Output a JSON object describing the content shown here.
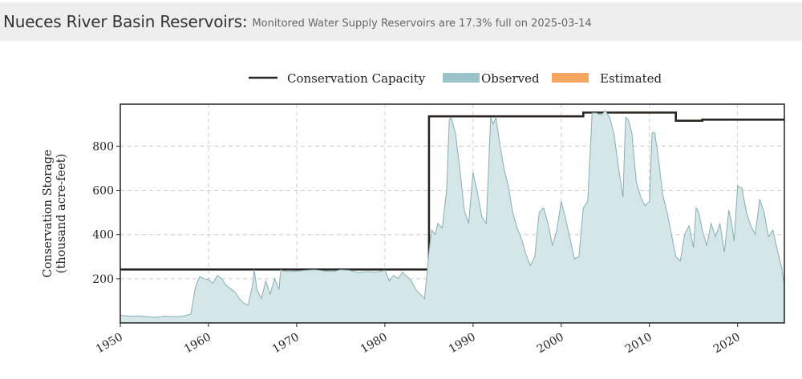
{
  "header": {
    "title": "Nueces River Basin Reservoirs:",
    "subtitle": "Monitored Water Supply Reservoirs are 17.3% full on 2025-03-14"
  },
  "chart_data": {
    "type": "area",
    "title": "",
    "xlabel": "",
    "ylabel_lines": [
      "Conservation Storage",
      "(thousand acre-feet)"
    ],
    "xlim": [
      1950,
      2025.3
    ],
    "ylim": [
      0,
      990
    ],
    "x_ticks": [
      1950,
      1960,
      1970,
      1980,
      1990,
      2000,
      2010,
      2020
    ],
    "y_ticks": [
      200,
      400,
      600,
      800
    ],
    "grid": true,
    "legend_position": "top",
    "legend": [
      {
        "label": "Conservation Capacity",
        "kind": "line",
        "color": "#2b2522"
      },
      {
        "label": "Observed",
        "kind": "patch",
        "color": "#9bc2c8"
      },
      {
        "label": "Estimated",
        "kind": "patch",
        "color": "#f4a560"
      }
    ],
    "series": [
      {
        "name": "Conservation Capacity",
        "kind": "step",
        "color": "#2b2522",
        "x": [
          1950,
          1985,
          1985,
          2002.5,
          2002.5,
          2013,
          2013,
          2016,
          2016,
          2025.3
        ],
        "y": [
          242,
          242,
          935,
          935,
          952,
          952,
          915,
          915,
          920,
          920
        ]
      },
      {
        "name": "Observed",
        "kind": "area",
        "fill": "#d5e6e8",
        "stroke": "#86aeb5",
        "x": [
          1950,
          1951,
          1952,
          1953,
          1954,
          1955,
          1956,
          1957,
          1958,
          1958.5,
          1959,
          1959.5,
          1960,
          1960.5,
          1961,
          1961.5,
          1962,
          1962.5,
          1963,
          1963.5,
          1964,
          1964.5,
          1965,
          1965.2,
          1965.5,
          1966,
          1966.5,
          1967,
          1967.5,
          1968,
          1968.2,
          1968.5,
          1969,
          1970,
          1971,
          1972,
          1973,
          1974,
          1975,
          1976,
          1977,
          1978,
          1979,
          1980,
          1980.5,
          1981,
          1981.5,
          1982,
          1983,
          1983.5,
          1984,
          1984.5,
          1985,
          1985.3,
          1985.7,
          1986,
          1986.5,
          1987,
          1987.3,
          1987.5,
          1988,
          1988.5,
          1989,
          1989.5,
          1990,
          1990.5,
          1991,
          1991.5,
          1992,
          1992.3,
          1992.6,
          1993,
          1993.5,
          1994,
          1994.5,
          1995,
          1995.5,
          1996,
          1996.5,
          1997,
          1997.5,
          1998,
          1998.5,
          1999,
          1999.5,
          2000,
          2000.5,
          2001,
          2001.5,
          2002,
          2002.5,
          2003,
          2003.5,
          2004,
          2004.5,
          2005,
          2005.5,
          2006,
          2006.5,
          2007,
          2007.3,
          2007.6,
          2008,
          2008.5,
          2009,
          2009.5,
          2010,
          2010.3,
          2010.6,
          2011,
          2011.5,
          2012,
          2012.5,
          2013,
          2013.5,
          2014,
          2014.5,
          2015,
          2015.3,
          2015.6,
          2016,
          2016.5,
          2017,
          2017.5,
          2018,
          2018.5,
          2019,
          2019.3,
          2019.6,
          2020,
          2020.5,
          2021,
          2021.5,
          2022,
          2022.5,
          2023,
          2023.5,
          2024,
          2024.5,
          2025,
          2025.3
        ],
        "y": [
          35,
          30,
          32,
          28,
          25,
          30,
          28,
          30,
          40,
          160,
          210,
          200,
          195,
          180,
          215,
          200,
          170,
          155,
          140,
          110,
          90,
          80,
          170,
          240,
          150,
          110,
          190,
          130,
          200,
          150,
          240,
          235,
          232,
          235,
          238,
          240,
          236,
          232,
          240,
          238,
          228,
          232,
          230,
          238,
          190,
          215,
          200,
          230,
          190,
          150,
          130,
          110,
          320,
          420,
          400,
          450,
          430,
          600,
          920,
          930,
          860,
          700,
          510,
          450,
          680,
          590,
          480,
          450,
          930,
          900,
          930,
          820,
          700,
          620,
          500,
          430,
          380,
          310,
          260,
          300,
          500,
          520,
          450,
          350,
          420,
          550,
          470,
          380,
          290,
          300,
          520,
          550,
          950,
          950,
          940,
          960,
          930,
          850,
          700,
          570,
          930,
          920,
          860,
          640,
          570,
          530,
          550,
          860,
          860,
          750,
          580,
          500,
          400,
          300,
          280,
          400,
          440,
          340,
          520,
          500,
          420,
          350,
          450,
          390,
          450,
          320,
          510,
          460,
          370,
          620,
          610,
          500,
          440,
          400,
          560,
          500,
          390,
          420,
          330,
          250,
          170
        ]
      },
      {
        "name": "Estimated",
        "kind": "area",
        "fill": "#f4a560",
        "x": [],
        "y": []
      }
    ]
  }
}
